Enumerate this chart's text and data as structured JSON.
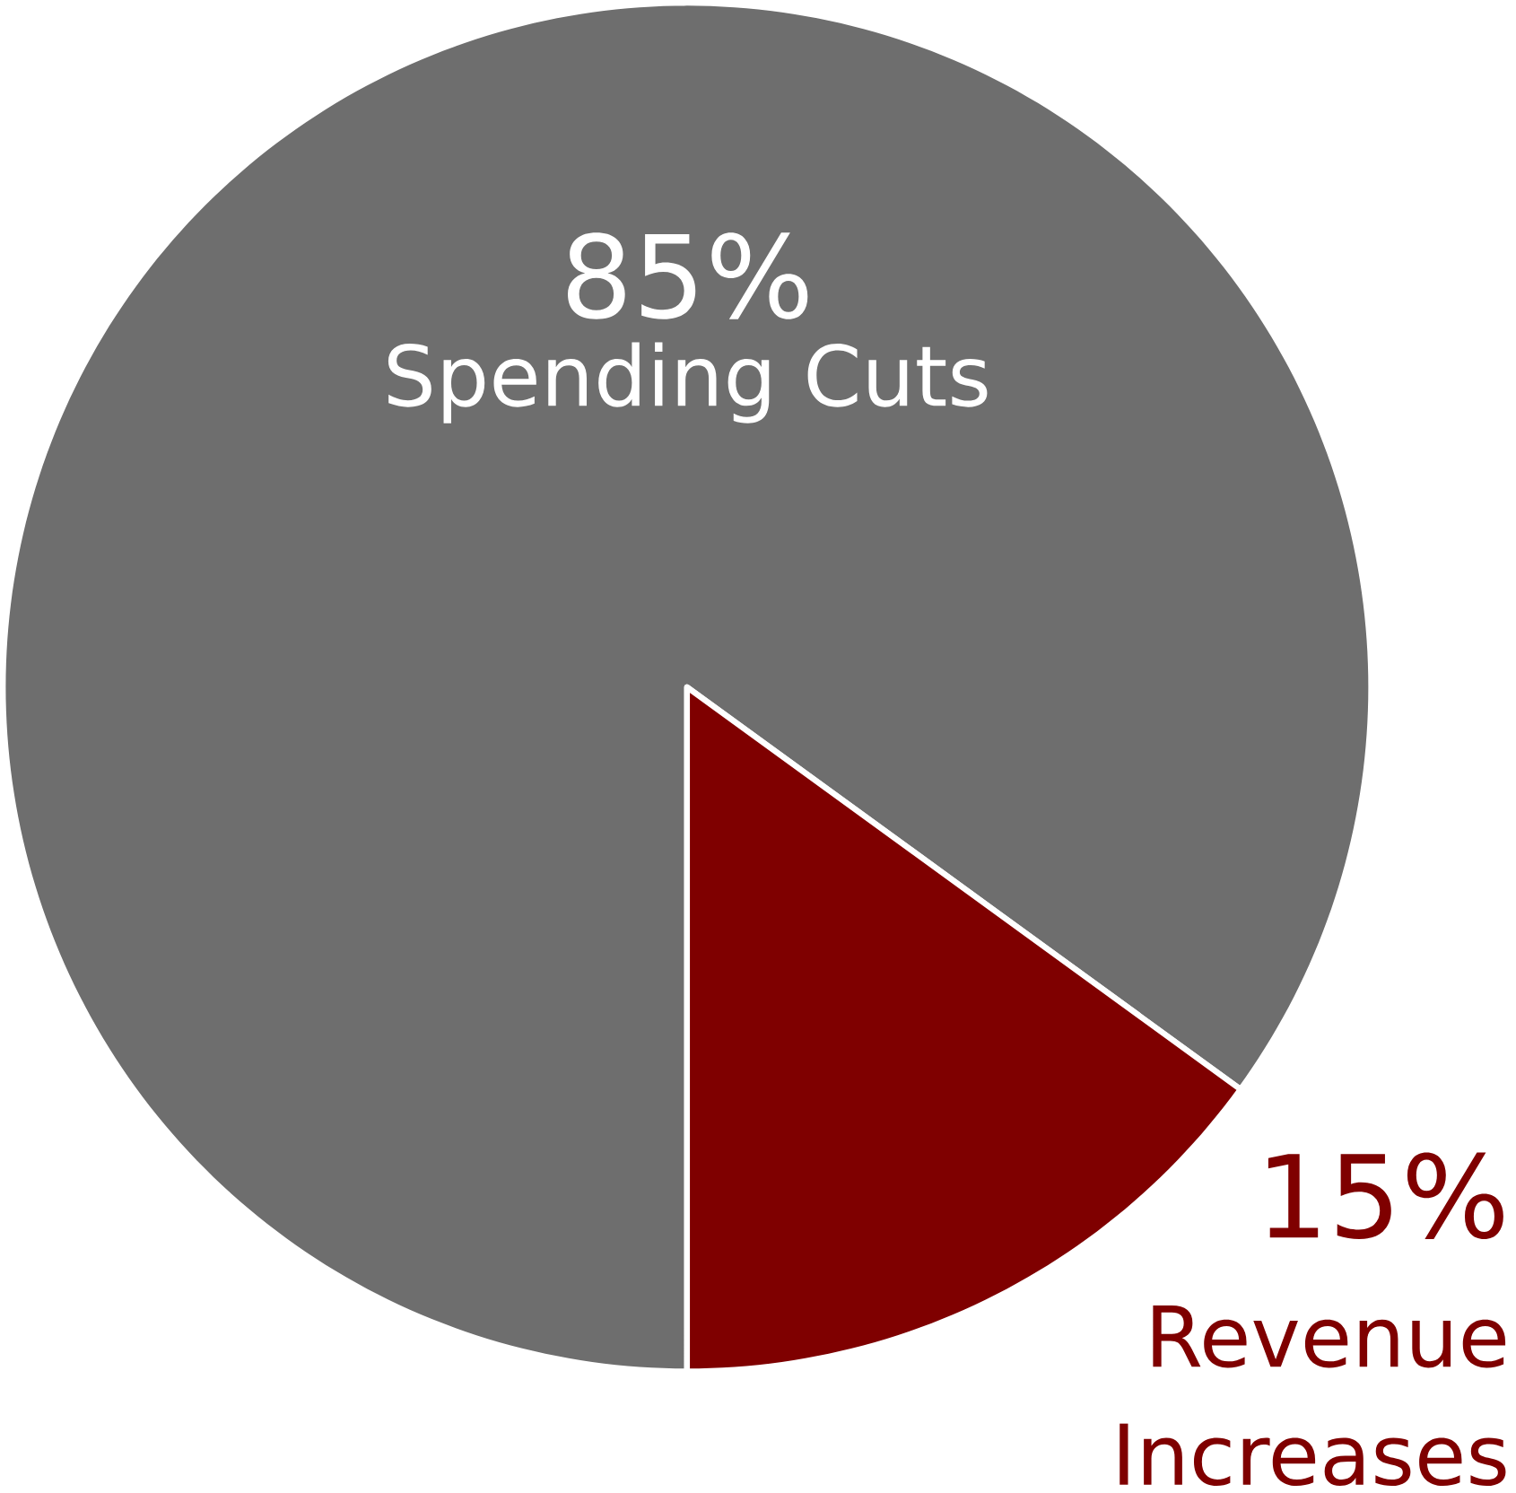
{
  "chart_data": {
    "type": "pie",
    "categories": [
      "Spending Cuts",
      "Revenue Increases"
    ],
    "values": [
      85,
      15
    ],
    "colors": [
      "#6e6e6e",
      "#7f0000"
    ],
    "value_labels": [
      "85%",
      "15%"
    ]
  }
}
